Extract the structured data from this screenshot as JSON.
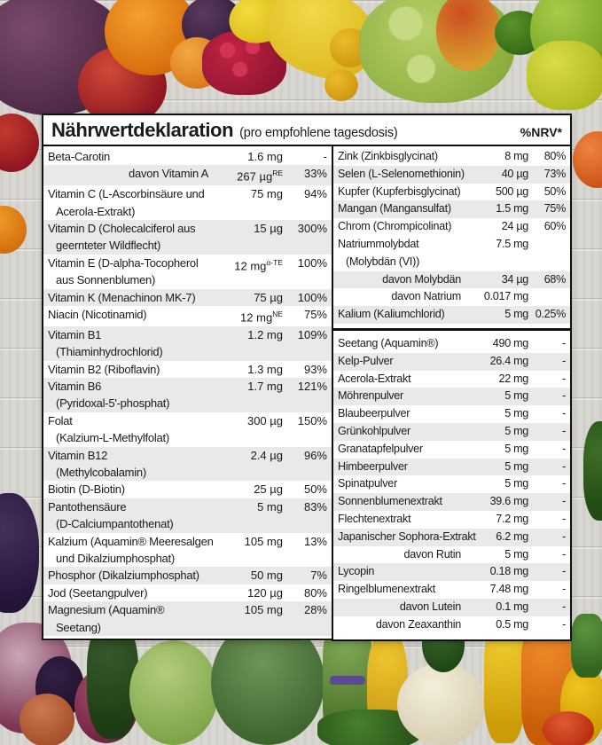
{
  "header": {
    "title": "Nährwertdeklaration",
    "subtitle": "(pro empfohlene tagesdosis)",
    "nrv_label": "%NRV*"
  },
  "colors": {
    "panel_background": "#ffffff",
    "panel_border": "#111111",
    "row_stripe": "#e9e9e9",
    "text": "#1a1a1a"
  },
  "table": {
    "left_column": {
      "rows": [
        {
          "lines": [
            "Beta-Carotin"
          ],
          "amount": "1.6 mg",
          "nrv": "-",
          "shaded": false
        },
        {
          "lines": [
            "davon Vitamin A"
          ],
          "amount": "267 µg",
          "sup": "RE",
          "nrv": "33%",
          "indent": true,
          "shaded": true
        },
        {
          "lines": [
            "Vitamin C (L-Ascorbinsäure und",
            "Acerola-Extrakt)"
          ],
          "amount": "75 mg",
          "nrv": "94%",
          "shaded": false
        },
        {
          "lines": [
            "Vitamin D (Cholecalciferol aus",
            "geernteter Wildflecht)"
          ],
          "amount": "15 µg",
          "nrv": "300%",
          "shaded": true
        },
        {
          "lines": [
            "Vitamin E (D-alpha-Tocopherol",
            "aus Sonnenblumen)"
          ],
          "amount": "12 mg",
          "sup": "α-TE",
          "nrv": "100%",
          "shaded": false
        },
        {
          "lines": [
            "Vitamin K (Menachinon MK-7)"
          ],
          "amount": "75 µg",
          "nrv": "100%",
          "shaded": true
        },
        {
          "lines": [
            "Niacin (Nicotinamid)"
          ],
          "amount": "12 mg",
          "sup": "NE",
          "nrv": "75%",
          "shaded": false
        },
        {
          "lines": [
            "Vitamin B1",
            "(Thiaminhydrochlorid)"
          ],
          "amount": "1.2 mg",
          "nrv": "109%",
          "shaded": true
        },
        {
          "lines": [
            "Vitamin B2 (Riboflavin)"
          ],
          "amount": "1.3 mg",
          "nrv": "93%",
          "shaded": false
        },
        {
          "lines": [
            "Vitamin B6",
            "(Pyridoxal-5'-phosphat)"
          ],
          "amount": "1.7 mg",
          "nrv": "121%",
          "shaded": true
        },
        {
          "lines": [
            "Folat",
            "(Kalzium-L-Methylfolat)"
          ],
          "amount": "300 µg",
          "nrv": "150%",
          "shaded": false
        },
        {
          "lines": [
            "Vitamin B12",
            "(Methylcobalamin)"
          ],
          "amount": "2.4 µg",
          "nrv": "96%",
          "shaded": true
        },
        {
          "lines": [
            "Biotin (D-Biotin)"
          ],
          "amount": "25 µg",
          "nrv": "50%",
          "shaded": false
        },
        {
          "lines": [
            "Pantothensäure",
            "(D-Calciumpantothenat)"
          ],
          "amount": "5 mg",
          "nrv": "83%",
          "shaded": true
        },
        {
          "lines": [
            "Kalzium (Aquamin® Meeresalgen",
            "und Dikalziumphosphat)"
          ],
          "amount": "105 mg",
          "nrv": "13%",
          "shaded": false
        },
        {
          "lines": [
            "Phosphor (Dikalziumphosphat)"
          ],
          "amount": "50 mg",
          "nrv": "7%",
          "shaded": true
        },
        {
          "lines": [
            "Jod (Seetangpulver)"
          ],
          "amount": "120 µg",
          "nrv": "80%",
          "shaded": false
        },
        {
          "lines": [
            "Magnesium (Aquamin®",
            "Seetang)"
          ],
          "amount": "105 mg",
          "nrv": "28%",
          "shaded": true
        }
      ]
    },
    "right_column": {
      "sections": [
        {
          "rows": [
            {
              "lines": [
                "Zink (Zinkbisglycinat)"
              ],
              "amount": "8 mg",
              "nrv": "80%",
              "shaded": false
            },
            {
              "lines": [
                "Selen (L-Selenomethionin)"
              ],
              "amount": "40 µg",
              "nrv": "73%",
              "shaded": true
            },
            {
              "lines": [
                "Kupfer (Kupferbisglycinat)"
              ],
              "amount": "500 µg",
              "nrv": "50%",
              "shaded": false
            },
            {
              "lines": [
                "Mangan (Mangansulfat)"
              ],
              "amount": "1.5 mg",
              "nrv": "75%",
              "shaded": true
            },
            {
              "lines": [
                "Chrom (Chrompicolinat)"
              ],
              "amount": "24 µg",
              "nrv": "60%",
              "shaded": false
            },
            {
              "lines": [
                "Natriummolybdat",
                "(Molybdän (VI))"
              ],
              "amount": "7.5 mg",
              "nrv": "",
              "shaded": false
            },
            {
              "lines": [
                "davon Molybdän"
              ],
              "amount": "34 µg",
              "nrv": "68%",
              "indent": true,
              "shaded": true
            },
            {
              "lines": [
                "davon Natrium"
              ],
              "amount": "0.017 mg",
              "nrv": "",
              "indent": true,
              "shaded": false
            },
            {
              "lines": [
                "Kalium (Kaliumchlorid)"
              ],
              "amount": "5 mg",
              "nrv": "0.25%",
              "shaded": true
            }
          ]
        },
        {
          "rows": [
            {
              "lines": [
                "Seetang (Aquamin®)"
              ],
              "amount": "490 mg",
              "nrv": "-",
              "shaded": false
            },
            {
              "lines": [
                "Kelp-Pulver"
              ],
              "amount": "26.4 mg",
              "nrv": "-",
              "shaded": true
            },
            {
              "lines": [
                "Acerola-Extrakt"
              ],
              "amount": "22 mg",
              "nrv": "-",
              "shaded": false
            },
            {
              "lines": [
                "Möhrenpulver"
              ],
              "amount": "5 mg",
              "nrv": "-",
              "shaded": true
            },
            {
              "lines": [
                "Blaubeerpulver"
              ],
              "amount": "5 mg",
              "nrv": "-",
              "shaded": false
            },
            {
              "lines": [
                "Grünkohlpulver"
              ],
              "amount": "5 mg",
              "nrv": "-",
              "shaded": true
            },
            {
              "lines": [
                "Granatapfelpulver"
              ],
              "amount": "5 mg",
              "nrv": "-",
              "shaded": false
            },
            {
              "lines": [
                "Himbeerpulver"
              ],
              "amount": "5 mg",
              "nrv": "-",
              "shaded": true
            },
            {
              "lines": [
                "Spinatpulver"
              ],
              "amount": "5 mg",
              "nrv": "-",
              "shaded": false
            },
            {
              "lines": [
                "Sonnenblumenextrakt"
              ],
              "amount": "39.6 mg",
              "nrv": "-",
              "shaded": true
            },
            {
              "lines": [
                "Flechtenextrakt"
              ],
              "amount": "7.2 mg",
              "nrv": "-",
              "shaded": false
            },
            {
              "lines": [
                "Japanischer Sophora-Extrakt"
              ],
              "amount": "6.2 mg",
              "nrv": "-",
              "shaded": true
            },
            {
              "lines": [
                "davon Rutin"
              ],
              "amount": "5 mg",
              "nrv": "-",
              "indent": true,
              "shaded": false
            },
            {
              "lines": [
                "Lycopin"
              ],
              "amount": "0.18 mg",
              "nrv": "-",
              "shaded": true
            },
            {
              "lines": [
                "Ringelblumenextrakt"
              ],
              "amount": "7.48 mg",
              "nrv": "-",
              "shaded": false
            },
            {
              "lines": [
                "davon Lutein"
              ],
              "amount": "0.1 mg",
              "nrv": "-",
              "indent": true,
              "shaded": true
            },
            {
              "lines": [
                "davon Zeaxanthin"
              ],
              "amount": "0.5 mg",
              "nrv": "-",
              "indent": true,
              "shaded": false
            }
          ]
        }
      ]
    }
  }
}
